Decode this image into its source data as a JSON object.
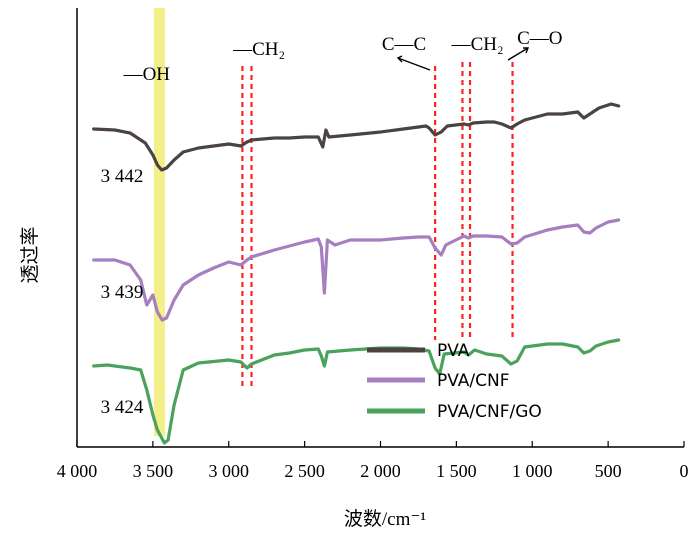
{
  "chart_data": {
    "type": "line",
    "xlabel": "波数/cm⁻¹",
    "ylabel": "透过率",
    "xlim": [
      4000,
      0
    ],
    "x_reversed": true,
    "x_ticks": [
      4000,
      3500,
      3000,
      2500,
      2000,
      1500,
      1000,
      500,
      0
    ],
    "x_tick_labels": [
      "4 000",
      "3 500",
      "3 000",
      "2 500",
      "2 000",
      "1 500",
      "1 000",
      "500",
      "0"
    ],
    "grid": false,
    "legend_position": "bottom-right",
    "highlight_band": {
      "x": 3440,
      "color": "#f3f08a"
    },
    "series": [
      {
        "name": "PVA",
        "color": "#4a4342",
        "points": [
          [
            3890,
            79
          ],
          [
            3750,
            80
          ],
          [
            3650,
            83
          ],
          [
            3550,
            93
          ],
          [
            3500,
            105
          ],
          [
            3470,
            115
          ],
          [
            3442,
            120
          ],
          [
            3410,
            118
          ],
          [
            3360,
            110
          ],
          [
            3300,
            102
          ],
          [
            3200,
            98
          ],
          [
            3100,
            96
          ],
          [
            3000,
            94
          ],
          [
            2920,
            96
          ],
          [
            2880,
            92
          ],
          [
            2850,
            90
          ],
          [
            2700,
            88
          ],
          [
            2600,
            88
          ],
          [
            2500,
            87
          ],
          [
            2410,
            87
          ],
          [
            2380,
            97
          ],
          [
            2360,
            80
          ],
          [
            2340,
            87
          ],
          [
            2200,
            85
          ],
          [
            2000,
            82
          ],
          [
            1850,
            79
          ],
          [
            1700,
            76
          ],
          [
            1680,
            78
          ],
          [
            1640,
            85
          ],
          [
            1600,
            82
          ],
          [
            1560,
            76
          ],
          [
            1450,
            74
          ],
          [
            1420,
            75
          ],
          [
            1390,
            73
          ],
          [
            1300,
            72
          ],
          [
            1250,
            72
          ],
          [
            1200,
            74
          ],
          [
            1140,
            78
          ],
          [
            1100,
            74
          ],
          [
            1050,
            70
          ],
          [
            900,
            64
          ],
          [
            800,
            64
          ],
          [
            700,
            62
          ],
          [
            660,
            68
          ],
          [
            620,
            64
          ],
          [
            560,
            58
          ],
          [
            480,
            54
          ],
          [
            430,
            56
          ]
        ]
      },
      {
        "name": "PVA/CNF",
        "color": "#a57fbf",
        "points": [
          [
            3890,
            210
          ],
          [
            3750,
            210
          ],
          [
            3650,
            215
          ],
          [
            3580,
            230
          ],
          [
            3540,
            255
          ],
          [
            3500,
            245
          ],
          [
            3470,
            262
          ],
          [
            3439,
            270
          ],
          [
            3410,
            268
          ],
          [
            3360,
            250
          ],
          [
            3300,
            235
          ],
          [
            3200,
            225
          ],
          [
            3100,
            218
          ],
          [
            3000,
            212
          ],
          [
            2920,
            215
          ],
          [
            2880,
            210
          ],
          [
            2850,
            207
          ],
          [
            2700,
            200
          ],
          [
            2600,
            196
          ],
          [
            2500,
            192
          ],
          [
            2410,
            189
          ],
          [
            2390,
            197
          ],
          [
            2370,
            243
          ],
          [
            2350,
            190
          ],
          [
            2300,
            195
          ],
          [
            2200,
            190
          ],
          [
            2000,
            190
          ],
          [
            1850,
            188
          ],
          [
            1750,
            187
          ],
          [
            1680,
            187
          ],
          [
            1640,
            198
          ],
          [
            1600,
            205
          ],
          [
            1570,
            195
          ],
          [
            1450,
            186
          ],
          [
            1420,
            188
          ],
          [
            1390,
            186
          ],
          [
            1300,
            186
          ],
          [
            1200,
            187
          ],
          [
            1140,
            194
          ],
          [
            1100,
            193
          ],
          [
            1050,
            187
          ],
          [
            900,
            180
          ],
          [
            800,
            177
          ],
          [
            700,
            175
          ],
          [
            660,
            182
          ],
          [
            620,
            183
          ],
          [
            580,
            178
          ],
          [
            500,
            172
          ],
          [
            430,
            170
          ]
        ]
      },
      {
        "name": "PVA/CNF/GO",
        "color": "#4aa25c",
        "points": [
          [
            3890,
            316
          ],
          [
            3800,
            315
          ],
          [
            3650,
            318
          ],
          [
            3580,
            320
          ],
          [
            3540,
            340
          ],
          [
            3500,
            365
          ],
          [
            3470,
            380
          ],
          [
            3424,
            393
          ],
          [
            3400,
            390
          ],
          [
            3360,
            355
          ],
          [
            3300,
            320
          ],
          [
            3200,
            313
          ],
          [
            3000,
            310
          ],
          [
            2920,
            312
          ],
          [
            2880,
            318
          ],
          [
            2850,
            314
          ],
          [
            2700,
            305
          ],
          [
            2600,
            303
          ],
          [
            2500,
            300
          ],
          [
            2410,
            299
          ],
          [
            2390,
            306
          ],
          [
            2370,
            316
          ],
          [
            2350,
            302
          ],
          [
            2200,
            300
          ],
          [
            2000,
            298
          ],
          [
            1850,
            298
          ],
          [
            1750,
            299
          ],
          [
            1680,
            301
          ],
          [
            1640,
            318
          ],
          [
            1610,
            324
          ],
          [
            1580,
            304
          ],
          [
            1450,
            302
          ],
          [
            1420,
            305
          ],
          [
            1380,
            300
          ],
          [
            1300,
            304
          ],
          [
            1200,
            306
          ],
          [
            1140,
            314
          ],
          [
            1100,
            311
          ],
          [
            1050,
            297
          ],
          [
            900,
            294
          ],
          [
            800,
            294
          ],
          [
            700,
            297
          ],
          [
            660,
            303
          ],
          [
            620,
            301
          ],
          [
            580,
            296
          ],
          [
            500,
            292
          ],
          [
            430,
            290
          ]
        ]
      }
    ],
    "peak_labels": [
      {
        "text": "3 442",
        "x": 3442
      },
      {
        "text": "3 439",
        "x": 3439
      },
      {
        "text": "3 424",
        "x": 3424
      }
    ],
    "guide_lines": [
      2910,
      2850,
      1640,
      1460,
      1410,
      1130
    ],
    "group_labels": [
      {
        "text": "—OH",
        "x": 3540
      },
      {
        "text": "—CH₂",
        "x": 2800
      },
      {
        "text": "C—C",
        "x": 1845
      },
      {
        "text": "—CH₂",
        "x": 1360
      },
      {
        "text": "C—O",
        "x": 950
      }
    ]
  }
}
